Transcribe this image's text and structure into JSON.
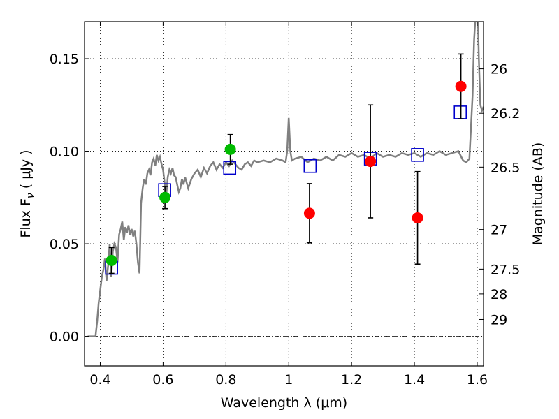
{
  "chart_data": {
    "type": "scatter",
    "xlabel": "Wavelength  λ (μm)",
    "ylabel": "Flux  F",
    "ylabel_sub": "ν",
    "ylabel_unit": "  ( μJy )",
    "ylabel_right": "Magnitude (AB)",
    "xlim": [
      0.35,
      1.62
    ],
    "ylim": [
      -0.016,
      0.17
    ],
    "grid": true,
    "x_ticks": [
      0.4,
      0.6,
      0.8,
      1.0,
      1.2,
      1.4,
      1.6
    ],
    "x_tick_labels": [
      "0.4",
      "0.6",
      "0.8",
      "1",
      "1.2",
      "1.4",
      "1.6"
    ],
    "y_ticks": [
      0.0,
      0.05,
      0.1,
      0.15
    ],
    "y_tick_labels": [
      "0.00",
      "0.05",
      "0.10",
      "0.15"
    ],
    "magnitude_ticks": [
      {
        "label": "26",
        "flux": 0.1445
      },
      {
        "label": "26.2",
        "flux": 0.1205
      },
      {
        "label": "26.5",
        "flux": 0.0914
      },
      {
        "label": "27",
        "flux": 0.0577
      },
      {
        "label": "27.5",
        "flux": 0.0363
      },
      {
        "label": "28",
        "flux": 0.0229
      },
      {
        "label": "29",
        "flux": 0.0091
      }
    ],
    "zero_line": 0.0,
    "colors": {
      "model": "#808080",
      "green": "#00bb00",
      "red": "#ff0000",
      "box": "#0000cc",
      "errorbar": "#000000"
    },
    "series": [
      {
        "kind": "line",
        "x": [
          0.36,
          0.375,
          0.385,
          0.39,
          0.395,
          0.4,
          0.405,
          0.41,
          0.415,
          0.42,
          0.425,
          0.43,
          0.435,
          0.44,
          0.445,
          0.45,
          0.455,
          0.46,
          0.465,
          0.47,
          0.475,
          0.48,
          0.485,
          0.49,
          0.495,
          0.5,
          0.505,
          0.51,
          0.515,
          0.52,
          0.525,
          0.53,
          0.535,
          0.54,
          0.545,
          0.55,
          0.555,
          0.56,
          0.565,
          0.57,
          0.575,
          0.58,
          0.585,
          0.59,
          0.595,
          0.6,
          0.605,
          0.61,
          0.615,
          0.62,
          0.625,
          0.63,
          0.635,
          0.64,
          0.645,
          0.65,
          0.655,
          0.66,
          0.665,
          0.67,
          0.68,
          0.69,
          0.7,
          0.71,
          0.72,
          0.73,
          0.74,
          0.75,
          0.76,
          0.77,
          0.78,
          0.79,
          0.8,
          0.81,
          0.82,
          0.83,
          0.84,
          0.85,
          0.86,
          0.87,
          0.88,
          0.89,
          0.9,
          0.92,
          0.94,
          0.96,
          0.98,
          0.99,
          0.995,
          1.0,
          1.005,
          1.01,
          1.02,
          1.04,
          1.06,
          1.08,
          1.1,
          1.12,
          1.14,
          1.16,
          1.18,
          1.2,
          1.22,
          1.24,
          1.26,
          1.28,
          1.3,
          1.32,
          1.34,
          1.36,
          1.38,
          1.4,
          1.42,
          1.44,
          1.46,
          1.48,
          1.5,
          1.52,
          1.54,
          1.555,
          1.565,
          1.575,
          1.585,
          1.59,
          1.595,
          1.6,
          1.605,
          1.61,
          1.615,
          1.62
        ],
        "y": [
          0.0,
          0.0,
          0.0,
          0.008,
          0.018,
          0.025,
          0.032,
          0.036,
          0.042,
          0.03,
          0.038,
          0.05,
          0.032,
          0.046,
          0.05,
          0.048,
          0.04,
          0.055,
          0.058,
          0.062,
          0.052,
          0.059,
          0.056,
          0.06,
          0.055,
          0.058,
          0.054,
          0.057,
          0.05,
          0.04,
          0.034,
          0.072,
          0.08,
          0.085,
          0.082,
          0.088,
          0.09,
          0.087,
          0.094,
          0.096,
          0.092,
          0.098,
          0.095,
          0.097,
          0.093,
          0.09,
          0.083,
          0.076,
          0.086,
          0.09,
          0.088,
          0.091,
          0.087,
          0.086,
          0.082,
          0.078,
          0.08,
          0.085,
          0.082,
          0.086,
          0.08,
          0.085,
          0.088,
          0.09,
          0.086,
          0.091,
          0.088,
          0.092,
          0.094,
          0.09,
          0.093,
          0.091,
          0.094,
          0.092,
          0.095,
          0.093,
          0.091,
          0.09,
          0.093,
          0.094,
          0.092,
          0.095,
          0.094,
          0.095,
          0.094,
          0.096,
          0.095,
          0.094,
          0.1,
          0.118,
          0.1,
          0.095,
          0.096,
          0.097,
          0.094,
          0.096,
          0.095,
          0.097,
          0.095,
          0.098,
          0.097,
          0.099,
          0.097,
          0.098,
          0.096,
          0.099,
          0.097,
          0.098,
          0.097,
          0.099,
          0.098,
          0.099,
          0.097,
          0.099,
          0.098,
          0.1,
          0.098,
          0.099,
          0.1,
          0.095,
          0.094,
          0.096,
          0.13,
          0.16,
          0.175,
          0.19,
          0.15,
          0.125,
          0.122,
          0.124
        ]
      },
      {
        "kind": "box",
        "x": [
          0.436,
          0.605,
          0.812,
          1.068,
          1.26,
          1.41,
          1.546
        ],
        "y": [
          0.037,
          0.079,
          0.091,
          0.092,
          0.096,
          0.098,
          0.121
        ]
      },
      {
        "kind": "point",
        "color_key": "green",
        "x": [
          0.436,
          0.606,
          0.814
        ],
        "y": [
          0.041,
          0.075,
          0.101
        ],
        "yerr": [
          0.007,
          0.006,
          0.008
        ]
      },
      {
        "kind": "point",
        "color_key": "red",
        "x": [
          1.066,
          1.26,
          1.41,
          1.548
        ],
        "y": [
          0.0665,
          0.0945,
          0.064,
          0.135
        ],
        "yerr": [
          0.016,
          0.0305,
          0.025,
          0.0175
        ]
      }
    ]
  }
}
